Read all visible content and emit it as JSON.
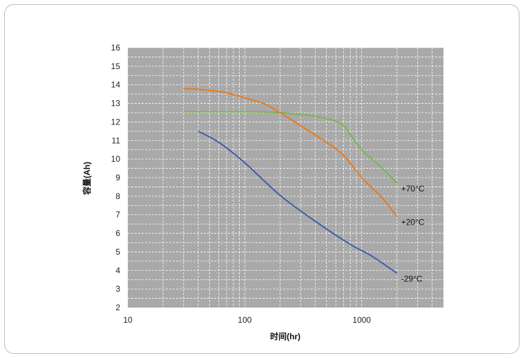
{
  "chart_data": {
    "type": "line",
    "xlabel": "时间(hr)",
    "ylabel": "容量(Ah)",
    "x_scale": "log",
    "xlim": [
      10,
      5000
    ],
    "ylim": [
      2,
      16
    ],
    "x_ticks": [
      10,
      100,
      1000
    ],
    "x_tick_labels": [
      "10",
      "100",
      "1000"
    ],
    "y_ticks": [
      2,
      3,
      4,
      5,
      6,
      7,
      8,
      9,
      10,
      11,
      12,
      13,
      14,
      15,
      16
    ],
    "y_tick_labels": [
      "2",
      "3",
      "4",
      "5",
      "6",
      "7",
      "8",
      "9",
      "10",
      "11",
      "12",
      "13",
      "14",
      "15",
      "16"
    ],
    "grid": true,
    "plot_background": "#a9a9a9",
    "series": [
      {
        "name": "+70°C",
        "color": "#7ab648",
        "x": [
          30,
          100,
          200,
          400,
          650,
          800,
          1000,
          1500,
          2000
        ],
        "y": [
          12.55,
          12.55,
          12.5,
          12.3,
          11.95,
          11.3,
          10.5,
          9.5,
          8.7
        ]
      },
      {
        "name": "+20°C",
        "color": "#e87b1e",
        "x": [
          30,
          60,
          100,
          150,
          200,
          300,
          500,
          700,
          1000,
          1500,
          2000
        ],
        "y": [
          13.8,
          13.65,
          13.3,
          12.95,
          12.5,
          11.8,
          10.9,
          10.2,
          9.0,
          7.9,
          6.9
        ]
      },
      {
        "name": "-29°C",
        "color": "#3f5dab",
        "x": [
          40,
          60,
          100,
          200,
          400,
          800,
          1200,
          2000
        ],
        "y": [
          11.5,
          10.9,
          9.8,
          8.05,
          6.65,
          5.4,
          4.8,
          3.85
        ]
      }
    ]
  }
}
